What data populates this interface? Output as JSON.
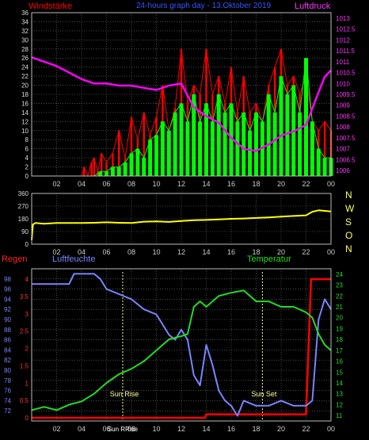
{
  "header": {
    "left": "Windstärke",
    "center": "24-hours graph day - 13.Oktober 2019",
    "right": "Luftdruck"
  },
  "colors": {
    "wind_gust": "#ff0000",
    "wind_avg": "#00ff00",
    "pressure": "#ff00ff",
    "direction": "#ffff00",
    "humidity": "#7a84ff",
    "temperature": "#22dd22",
    "rain": "#ff0000",
    "grid": "#777777",
    "frame": "#bbbbbb",
    "sun_marker": "#ffff88"
  },
  "x_ticks": [
    "02",
    "04",
    "06",
    "08",
    "10",
    "12",
    "14",
    "16",
    "18",
    "20",
    "22",
    "00"
  ],
  "direction_letters": [
    "N",
    "W",
    "S",
    "O",
    "N"
  ],
  "labels": {
    "rain": "Regen",
    "humidity": "Luftfeuchte",
    "temperature": "Temperatur",
    "sunrise": "Sun Rise",
    "sunset": "Sun Set",
    "sun_tick": "Sun RRise"
  },
  "chart_data": [
    {
      "type": "line",
      "panel": "wind_pressure",
      "ylim": [
        0,
        36
      ],
      "y_ticks": [
        "0",
        "2",
        "4",
        "6",
        "8",
        "10",
        "12",
        "14",
        "16",
        "18",
        "20",
        "22",
        "24",
        "26",
        "28",
        "30",
        "32",
        "34",
        "36"
      ],
      "y2lim": [
        1005.75,
        1013.25
      ],
      "y2_ticks": [
        "1006",
        "1006.5",
        "1007",
        "1007.5",
        "1008",
        "1008.5",
        "1009",
        "1009.5",
        "1010",
        "1010.5",
        "1011",
        "1011.5",
        "1012",
        "1012.5",
        "1013"
      ],
      "gust_x": [
        0.0,
        4.0,
        4.2,
        4.5,
        4.8,
        5.0,
        5.3,
        5.6,
        6.0,
        6.5,
        7.0,
        7.5,
        8.0,
        8.5,
        9.0,
        9.5,
        10.0,
        10.5,
        11.0,
        11.5,
        12.0,
        12.5,
        13.0,
        13.5,
        14.0,
        14.5,
        15.0,
        15.5,
        16.0,
        16.5,
        17.0,
        17.5,
        18.0,
        18.5,
        19.0,
        19.5,
        20.0,
        20.5,
        21.0,
        21.5,
        22.0,
        22.5,
        23.0,
        23.5,
        24.0
      ],
      "gust": [
        0,
        0,
        2,
        0,
        3,
        4,
        1,
        5,
        3,
        5,
        10,
        4,
        13,
        8,
        14,
        9,
        13,
        20,
        10,
        15,
        28,
        16,
        20,
        18,
        28,
        18,
        22,
        16,
        24,
        14,
        22,
        14,
        16,
        12,
        20,
        24,
        28,
        20,
        22,
        18,
        22,
        12,
        10,
        12,
        10
      ],
      "avg_x": [
        0.0,
        5.0,
        5.5,
        6.0,
        6.5,
        7.0,
        7.5,
        8.0,
        8.5,
        9.0,
        9.5,
        10.0,
        10.5,
        11.0,
        11.5,
        12.0,
        12.5,
        13.0,
        13.5,
        14.0,
        14.5,
        15.0,
        15.5,
        16.0,
        16.5,
        17.0,
        17.5,
        18.0,
        18.5,
        19.0,
        19.5,
        20.0,
        20.5,
        21.0,
        21.5,
        22.0,
        22.5,
        23.0,
        23.5,
        24.0
      ],
      "avg": [
        0,
        0,
        1,
        1,
        2,
        2,
        3,
        5,
        6,
        4,
        8,
        9,
        12,
        10,
        14,
        16,
        12,
        18,
        12,
        16,
        12,
        18,
        14,
        16,
        12,
        14,
        10,
        14,
        12,
        18,
        14,
        22,
        18,
        20,
        14,
        26,
        12,
        6,
        4,
        4
      ],
      "pressure_x": [
        0.0,
        1.0,
        2.0,
        3.0,
        4.0,
        5.0,
        6.0,
        7.0,
        8.0,
        9.0,
        10.0,
        11.0,
        12.0,
        13.0,
        14.0,
        15.0,
        16.0,
        17.0,
        18.0,
        19.0,
        20.0,
        21.0,
        22.0,
        23.0,
        23.5,
        24.0
      ],
      "pressure": [
        1011.2,
        1011.0,
        1010.8,
        1010.5,
        1010.2,
        1010.0,
        1010.0,
        1009.9,
        1009.9,
        1009.8,
        1009.7,
        1009.9,
        1010.0,
        1008.9,
        1008.5,
        1008.2,
        1007.5,
        1007.0,
        1006.9,
        1007.2,
        1007.6,
        1007.8,
        1008.1,
        1009.6,
        1010.3,
        1010.6
      ]
    },
    {
      "type": "line",
      "panel": "wind_direction",
      "ylim": [
        0,
        360
      ],
      "y_ticks": [
        "0",
        "90",
        "180",
        "270",
        "360"
      ],
      "x": [
        0.0,
        0.1,
        0.3,
        1.0,
        2.0,
        3.0,
        4.0,
        5.0,
        6.0,
        7.0,
        8.0,
        9.0,
        10.0,
        11.0,
        12.0,
        13.0,
        14.0,
        15.0,
        16.0,
        17.0,
        18.0,
        19.0,
        20.0,
        21.0,
        22.0,
        22.5,
        23.0,
        24.0
      ],
      "values": [
        30,
        140,
        150,
        145,
        150,
        150,
        150,
        152,
        155,
        152,
        150,
        160,
        162,
        158,
        165,
        170,
        172,
        176,
        180,
        182,
        186,
        190,
        195,
        200,
        205,
        230,
        240,
        232
      ]
    },
    {
      "type": "line",
      "panel": "humidity_temperature_rain",
      "ylim": [
        70,
        100
      ],
      "y_ticks": [
        "72",
        "74",
        "76",
        "78",
        "80",
        "82",
        "84",
        "86",
        "88",
        "90",
        "92",
        "94",
        "96",
        "98"
      ],
      "y_rain_lim": [
        0,
        4.3
      ],
      "y_rain_ticks": [
        "0",
        "0.5",
        "1",
        "1.5",
        "2",
        "2.5",
        "3",
        "3.5",
        "4"
      ],
      "y_temp_lim": [
        10.5,
        24.5
      ],
      "y_temp_ticks": [
        "11",
        "12",
        "13",
        "14",
        "15",
        "16",
        "17",
        "18",
        "19",
        "20",
        "21",
        "22",
        "23",
        "24"
      ],
      "humidity_x": [
        0.0,
        3.0,
        3.4,
        4.0,
        5.0,
        5.5,
        6.0,
        7.0,
        8.0,
        9.0,
        10.0,
        10.5,
        11.0,
        11.5,
        12.0,
        12.5,
        13.0,
        13.5,
        14.0,
        14.5,
        15.0,
        15.5,
        16.0,
        16.5,
        17.0,
        18.0,
        19.0,
        20.0,
        21.0,
        22.0,
        22.5,
        23.0,
        23.5,
        24.0
      ],
      "humidity": [
        97,
        97,
        99,
        99,
        99,
        98,
        96,
        95,
        94,
        92,
        91,
        89,
        87,
        86,
        88,
        86,
        79,
        77,
        85,
        81,
        76,
        74,
        73,
        71,
        74,
        73,
        73,
        74,
        73,
        73,
        74,
        90,
        94,
        92
      ],
      "temperature_x": [
        0.0,
        1.0,
        2.0,
        3.0,
        4.0,
        5.0,
        6.0,
        7.0,
        8.0,
        9.0,
        10.0,
        11.0,
        12.0,
        12.5,
        13.0,
        13.5,
        14.0,
        15.0,
        16.0,
        17.0,
        18.0,
        19.0,
        20.0,
        21.0,
        22.0,
        22.5,
        23.0,
        23.5,
        24.0
      ],
      "temperature": [
        11.5,
        11.8,
        11.5,
        12.0,
        12.3,
        13.0,
        14.0,
        14.8,
        15.3,
        16.0,
        17.0,
        18.0,
        18.3,
        18.5,
        21.0,
        21.5,
        21.0,
        22.0,
        22.3,
        22.5,
        21.5,
        21.5,
        21.0,
        21.0,
        20.5,
        20.0,
        18.5,
        17.5,
        17.0
      ],
      "rain_x": [
        0.0,
        13.9,
        14.0,
        21.8,
        22.0,
        22.2,
        22.4,
        24.0
      ],
      "rain": [
        0.0,
        0.0,
        0.1,
        0.1,
        0.1,
        2.0,
        4.0,
        4.0
      ],
      "sunrise_hour": 7.3,
      "sunset_hour": 18.5
    }
  ]
}
